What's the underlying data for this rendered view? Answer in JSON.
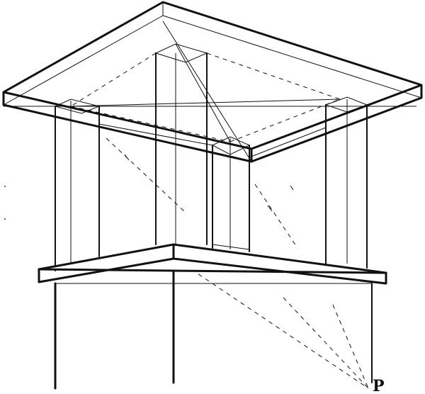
{
  "diagram": {
    "point_label": "P"
  }
}
